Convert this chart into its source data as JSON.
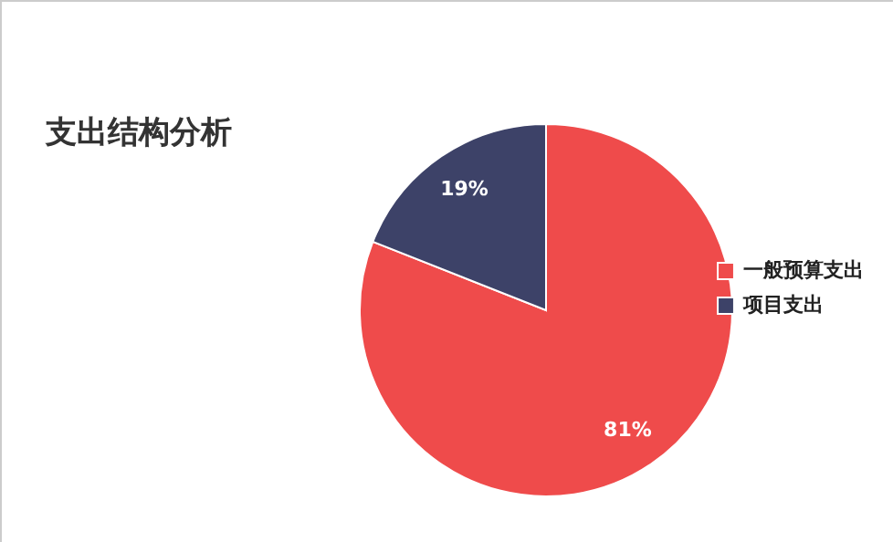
{
  "chart_data": {
    "type": "pie",
    "title": "支出结构分析",
    "categories": [
      "一般预算支出",
      "项目支出"
    ],
    "values": [
      81,
      19
    ],
    "colors": [
      "#ef4b4b",
      "#3d4268"
    ],
    "value_labels": [
      "81%",
      "19%"
    ],
    "legend": "right"
  }
}
